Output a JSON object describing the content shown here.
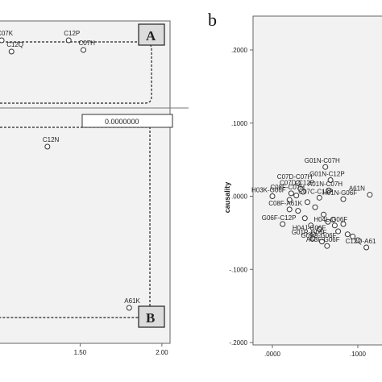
{
  "chart_data": [
    {
      "type": "scatter",
      "panel": "a",
      "xticks": [
        "1.50",
        "2.00"
      ],
      "xlim": [
        1.0,
        2.05
      ],
      "ylim": [
        0,
        1
      ],
      "reference_line_value": "0.0000000",
      "annotation_boxes": [
        {
          "label": "A",
          "region": "upper"
        },
        {
          "label": "B",
          "region": "lower"
        }
      ],
      "points": [
        {
          "label": "C07K",
          "x": 1.02,
          "y": 0.94
        },
        {
          "label": "C12Q",
          "x": 1.08,
          "y": 0.905
        },
        {
          "label": "C12P",
          "x": 1.43,
          "y": 0.94
        },
        {
          "label": "C07H",
          "x": 1.52,
          "y": 0.91
        },
        {
          "label": "C12N",
          "x": 1.3,
          "y": 0.61
        },
        {
          "label": "A61K",
          "x": 1.8,
          "y": 0.11
        }
      ]
    },
    {
      "type": "scatter",
      "panel": "b",
      "title": "b",
      "ylabel": "causality",
      "yticks": [
        ".2000",
        ".1000",
        ".0000",
        "-.1000",
        "-.2000"
      ],
      "xticks": [
        ".0000",
        ".1000"
      ],
      "xlim": [
        -0.03,
        0.13
      ],
      "ylim": [
        -0.2,
        0.2
      ],
      "points": [
        {
          "label": "G01N-C07H",
          "x": 0.062,
          "y": 0.04
        },
        {
          "label": "C07D-C07H",
          "x": 0.03,
          "y": 0.018
        },
        {
          "label": "C07D-C12P",
          "x": 0.033,
          "y": 0.01
        },
        {
          "label": "G01N-C12P",
          "x": 0.068,
          "y": 0.022
        },
        {
          "label": "A01N-C07H",
          "x": 0.066,
          "y": 0.008
        },
        {
          "label": "A61N",
          "x": 0.114,
          "y": 0.002
        },
        {
          "label": "C08F-C07H",
          "x": 0.022,
          "y": 0.004
        },
        {
          "label": "C07C-C12P",
          "x": 0.055,
          "y": -0.002
        },
        {
          "label": "H01N-G06F",
          "x": 0.083,
          "y": -0.004
        },
        {
          "label": "C08F-A61K",
          "x": 0.02,
          "y": -0.018
        },
        {
          "label": "H03K-G06F",
          "x": 0.0,
          "y": 0.0
        },
        {
          "label": "G06F-C12P",
          "x": 0.012,
          "y": -0.038
        },
        {
          "label": "H04L-G06F",
          "x": 0.073,
          "y": -0.04
        },
        {
          "label": "H04J-G06F",
          "x": 0.048,
          "y": -0.052
        },
        {
          "label": "G01R-G06F",
          "x": 0.047,
          "y": -0.058
        },
        {
          "label": "G09G-G06F",
          "x": 0.058,
          "y": -0.062
        },
        {
          "label": "A63F-G06F",
          "x": 0.064,
          "y": -0.068
        },
        {
          "label": "C12Q-A61",
          "x": 0.11,
          "y": -0.07
        }
      ],
      "extra_points": [
        {
          "x": 0.036,
          "y": 0.006
        },
        {
          "x": 0.028,
          "y": 0.001
        },
        {
          "x": 0.041,
          "y": -0.008
        },
        {
          "x": 0.02,
          "y": -0.005
        },
        {
          "x": 0.05,
          "y": -0.015
        },
        {
          "x": 0.06,
          "y": -0.025
        },
        {
          "x": 0.071,
          "y": -0.032
        },
        {
          "x": 0.083,
          "y": -0.038
        },
        {
          "x": 0.094,
          "y": -0.055
        },
        {
          "x": 0.1,
          "y": -0.06
        },
        {
          "x": 0.045,
          "y": -0.04
        },
        {
          "x": 0.055,
          "y": -0.045
        },
        {
          "x": 0.038,
          "y": -0.03
        },
        {
          "x": 0.03,
          "y": -0.02
        },
        {
          "x": 0.065,
          "y": -0.035
        },
        {
          "x": 0.077,
          "y": -0.048
        },
        {
          "x": 0.088,
          "y": -0.052
        }
      ]
    }
  ]
}
